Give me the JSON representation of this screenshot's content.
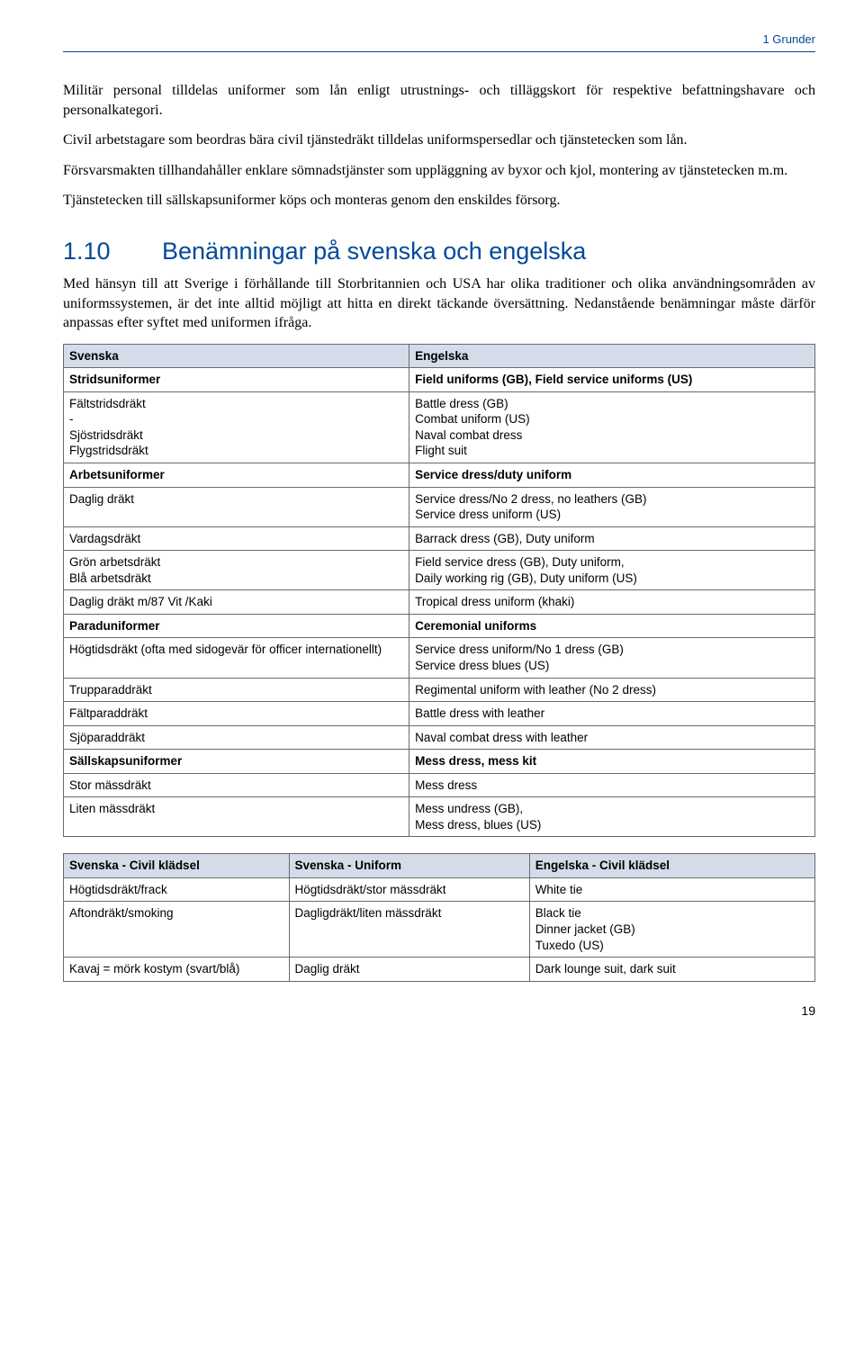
{
  "header": {
    "running": "1  Grunder"
  },
  "intro": {
    "p1": "Militär personal tilldelas uniformer som lån enligt utrustnings- och tilläggskort för respektive befattningshavare och personalkategori.",
    "p2": "Civil arbetstagare som beordras bära civil tjänstedräkt tilldelas uniformspersedlar och tjänstetecken som lån.",
    "p3": "Försvarsmakten tillhandahåller enklare sömnadstjänster som uppläggning av byxor och kjol, montering av tjänstetecken m.m.",
    "p4": "Tjänstetecken till sällskapsuniformer köps och monteras genom den enskildes försorg."
  },
  "section": {
    "number": "1.10",
    "title": "Benämningar på svenska och engelska",
    "lead": "Med hänsyn till att Sverige i förhållande till Storbritannien och USA har olika traditioner och olika användningsområden av uniformssystemen, är det inte alltid möjligt att hitta en direkt täckande översättning. Nedanstående benämningar måste därför anpassas efter syftet med uniformen ifråga."
  },
  "table1": {
    "head": {
      "sv": "Svenska",
      "en": "Engelska"
    },
    "rows": [
      {
        "sv": "Stridsuniformer",
        "en": "Field uniforms (GB), Field service uniforms (US)",
        "bold": true
      },
      {
        "sv": "Fältstridsdräkt\n-\nSjöstridsdräkt\nFlygstridsdräkt",
        "en": "Battle dress (GB)\nCombat uniform (US)\nNaval combat dress\nFlight suit"
      },
      {
        "sv": "Arbetsuniformer",
        "en": "Service dress/duty uniform",
        "bold": true
      },
      {
        "sv": "Daglig dräkt",
        "en": "Service dress/No 2 dress, no leathers (GB)\nService dress uniform (US)"
      },
      {
        "sv": "Vardagsdräkt",
        "en": "Barrack dress (GB), Duty uniform"
      },
      {
        "sv": "Grön arbetsdräkt\nBlå arbetsdräkt",
        "en": "Field service dress (GB), Duty uniform,\nDaily working rig (GB), Duty uniform (US)"
      },
      {
        "sv": "Daglig dräkt m/87 Vit /Kaki",
        "en": "Tropical dress uniform (khaki)"
      },
      {
        "sv": "Paraduniformer",
        "en": "Ceremonial uniforms",
        "bold": true
      },
      {
        "sv": "Högtidsdräkt (ofta med sidogevär för officer internationellt)",
        "en": "Service dress uniform/No 1 dress (GB)\nService dress blues (US)"
      },
      {
        "sv": "Trupparaddräkt",
        "en": "Regimental uniform with leather (No 2 dress)"
      },
      {
        "sv": "Fältparaddräkt",
        "en": "Battle dress with leather"
      },
      {
        "sv": "Sjöparaddräkt",
        "en": "Naval combat dress with leather"
      },
      {
        "sv": "Sällskapsuniformer",
        "en": "Mess dress, mess kit",
        "bold": true
      },
      {
        "sv": "Stor mässdräkt",
        "en": "Mess dress"
      },
      {
        "sv": "Liten mässdräkt",
        "en": "Mess undress (GB),\nMess dress, blues (US)"
      }
    ]
  },
  "table2": {
    "head": {
      "c1": "Svenska - Civil klädsel",
      "c2": "Svenska - Uniform",
      "c3": "Engelska - Civil klädsel"
    },
    "rows": [
      {
        "c1": "Högtidsdräkt/frack",
        "c2": "Högtidsdräkt/stor mässdräkt",
        "c3": "White tie"
      },
      {
        "c1": "Aftondräkt/smoking",
        "c2": "Dagligdräkt/liten mässdräkt",
        "c3": "Black tie\nDinner jacket (GB)\nTuxedo (US)"
      },
      {
        "c1": "Kavaj = mörk kostym (svart/blå)",
        "c2": "Daglig dräkt",
        "c3": "Dark lounge suit, dark suit"
      }
    ]
  },
  "footer": {
    "page": "19"
  }
}
